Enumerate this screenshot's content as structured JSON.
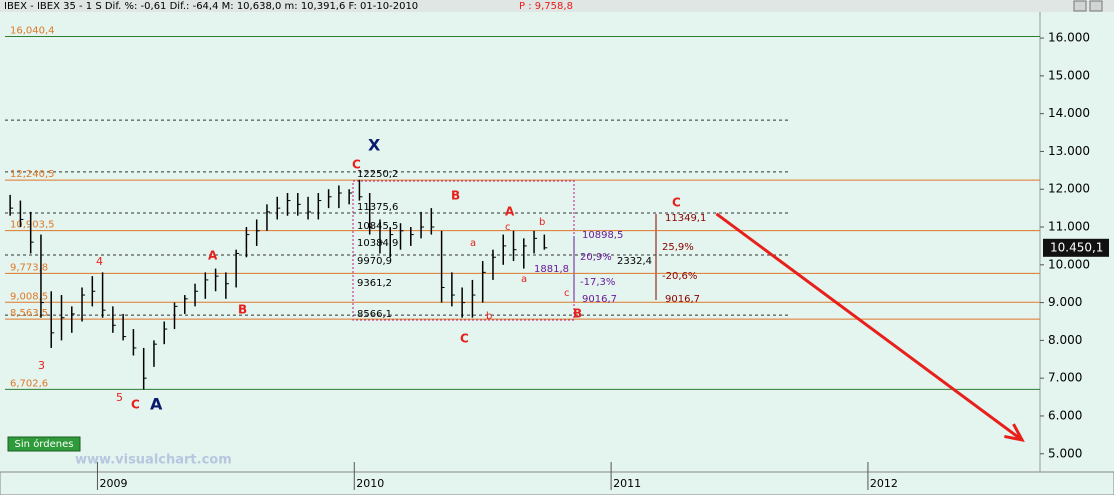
{
  "chart_data": {
    "type": "ohlc",
    "header": "IBEX - IBEX 35 - 1 S Dif. %: -0,61 Dif.: -64,4 M: 10,638,0 m: 10,391,6 F: 01-10-2010",
    "header_price": "P : 9,758,8",
    "x": [
      2008.66,
      2008.7,
      2008.74,
      2008.78,
      2008.82,
      2008.86,
      2008.9,
      2008.94,
      2008.98,
      2009.02,
      2009.06,
      2009.1,
      2009.14,
      2009.18,
      2009.22,
      2009.26,
      2009.3,
      2009.34,
      2009.38,
      2009.42,
      2009.46,
      2009.5,
      2009.54,
      2009.58,
      2009.62,
      2009.66,
      2009.7,
      2009.74,
      2009.78,
      2009.82,
      2009.86,
      2009.9,
      2009.94,
      2009.98,
      2010.02,
      2010.06,
      2010.1,
      2010.14,
      2010.18,
      2010.22,
      2010.26,
      2010.3,
      2010.34,
      2010.38,
      2010.42,
      2010.46,
      2010.5,
      2010.54,
      2010.58,
      2010.62,
      2010.66,
      2010.7,
      2010.74
    ],
    "high": [
      11850,
      11700,
      11400,
      10800,
      9300,
      9200,
      8900,
      9400,
      9700,
      9800,
      8900,
      8700,
      8300,
      7800,
      8000,
      8500,
      9000,
      9200,
      9500,
      9800,
      9900,
      9800,
      10400,
      11000,
      11200,
      11600,
      11800,
      11900,
      11900,
      11800,
      11900,
      12000,
      12100,
      12000,
      12250,
      11900,
      11200,
      11000,
      11100,
      11000,
      11400,
      11500,
      10900,
      9800,
      9400,
      9600,
      10100,
      10400,
      10800,
      10900,
      10700,
      10900,
      10800
    ],
    "low": [
      11300,
      11000,
      10300,
      8600,
      7800,
      8000,
      8200,
      8500,
      8900,
      8600,
      8200,
      8000,
      7600,
      6700,
      7300,
      7900,
      8300,
      8700,
      8900,
      9100,
      9300,
      9100,
      9400,
      10200,
      10500,
      10900,
      11200,
      11300,
      11300,
      11200,
      11200,
      11500,
      11500,
      11600,
      11700,
      10800,
      10300,
      10200,
      10400,
      10500,
      10700,
      10800,
      9000,
      8900,
      8600,
      8600,
      9000,
      9600,
      10000,
      10100,
      9900,
      10300,
      10400
    ],
    "close": [
      11500,
      11200,
      10600,
      9000,
      8200,
      8600,
      8700,
      9200,
      9300,
      8800,
      8400,
      8100,
      7800,
      7000,
      7900,
      8300,
      8900,
      9100,
      9300,
      9600,
      9700,
      9500,
      10300,
      10800,
      10900,
      11400,
      11500,
      11700,
      11600,
      11400,
      11700,
      11800,
      11900,
      11900,
      11800,
      11000,
      10600,
      10800,
      10900,
      10800,
      11000,
      11000,
      9400,
      9200,
      9000,
      9200,
      9800,
      10200,
      10500,
      10400,
      10500,
      10700,
      10450
    ],
    "color": "#000000",
    "xlim": [
      2008.64,
      2012.67
    ],
    "xticks": [
      2009,
      2010,
      2011,
      2012
    ],
    "ylim": [
      4570,
      16690
    ],
    "yticks": [
      {
        "value": 16000,
        "label": "16.000"
      },
      {
        "value": 15000,
        "label": "15.000"
      },
      {
        "value": 14000,
        "label": "14.000"
      },
      {
        "value": 13000,
        "label": "13.000"
      },
      {
        "value": 12000,
        "label": "12.000"
      },
      {
        "value": 11000,
        "label": "11.000"
      },
      {
        "value": 10000,
        "label": "10.000"
      },
      {
        "value": 9000,
        "label": "9.000"
      },
      {
        "value": 8000,
        "label": "8.000"
      },
      {
        "value": 7000,
        "label": "7.000"
      },
      {
        "value": 6000,
        "label": "6.000"
      },
      {
        "value": 5000,
        "label": "5.000"
      }
    ],
    "last_price": {
      "value": 10450.1,
      "label": "10.450,1"
    },
    "levels": [
      {
        "value": 16040.4,
        "label": "16,040,4",
        "color": "#2e7d32"
      },
      {
        "value": 12240.5,
        "label": "12,240,5",
        "color": "#e0782a"
      },
      {
        "value": 10903.5,
        "label": "10,903,5",
        "color": "#e0782a"
      },
      {
        "value": 9773.8,
        "label": "9,773,8",
        "color": "#e0782a"
      },
      {
        "value": 9008.5,
        "label": "9,008,5",
        "color": "#e0782a"
      },
      {
        "value": 8563.5,
        "label": "8,563,5",
        "color": "#e0782a"
      },
      {
        "value": 6702.6,
        "label": "6,702,6",
        "color": "#2e7d32"
      }
    ],
    "dashed_levels": [
      13830,
      12460,
      11370,
      10260,
      8670
    ],
    "forecast_arrow": {
      "x": [
        2011.41,
        2012.6
      ],
      "y": [
        11349,
        5365
      ],
      "color": "#e8201c"
    },
    "annotations": [
      {
        "text": "X",
        "color": "#0a1a6e"
      },
      {
        "text": "C",
        "color": "#e8201c"
      },
      {
        "text": "12250,2",
        "color": "#000000"
      },
      {
        "text": "B",
        "color": "#e8201c"
      },
      {
        "text": "11375,6",
        "color": "#000000"
      },
      {
        "text": "10845,5",
        "color": "#000000"
      },
      {
        "text": "10384,9",
        "color": "#000000"
      },
      {
        "text": "9970,9",
        "color": "#000000"
      },
      {
        "text": "9361,2",
        "color": "#000000"
      },
      {
        "text": "8566,1",
        "color": "#000000"
      },
      {
        "text": "A",
        "color": "#e8201c"
      },
      {
        "text": "c",
        "color": "#e8201c"
      },
      {
        "text": "b",
        "color": "#e8201c"
      },
      {
        "text": "a",
        "color": "#e8201c"
      },
      {
        "text": "a",
        "color": "#e8201c"
      },
      {
        "text": "c",
        "color": "#e8201c"
      },
      {
        "text": "b",
        "color": "#e8201c"
      },
      {
        "text": "B",
        "color": "#e8201c"
      },
      {
        "text": "C",
        "color": "#e8201c"
      },
      {
        "text": "10898,5",
        "color": "#6a1b9a"
      },
      {
        "text": "20,9%",
        "color": "#6a1b9a"
      },
      {
        "text": "1881,8",
        "color": "#6a1b9a"
      },
      {
        "text": "-17,3%",
        "color": "#6a1b9a"
      },
      {
        "text": "9016,7",
        "color": "#6a1b9a"
      },
      {
        "text": "2332,4",
        "color": "#000000"
      },
      {
        "text": "C",
        "color": "#e8201c"
      },
      {
        "text": "11349,1",
        "color": "#8b0000"
      },
      {
        "text": "25,9%",
        "color": "#8b0000"
      },
      {
        "text": "-20,6%",
        "color": "#8b0000"
      },
      {
        "text": "9016,7",
        "color": "#8b0000"
      },
      {
        "text": "A",
        "color": "#e8201c"
      },
      {
        "text": "B",
        "color": "#e8201c"
      },
      {
        "text": "4",
        "color": "#e8201c"
      },
      {
        "text": "3",
        "color": "#e8201c"
      },
      {
        "text": "5",
        "color": "#e8201c"
      },
      {
        "text": "C",
        "color": "#e8201c"
      },
      {
        "text": "A",
        "color": "#0a1a6e"
      }
    ],
    "button": "Sin órdenes",
    "watermark": "www.visualchart.com"
  }
}
